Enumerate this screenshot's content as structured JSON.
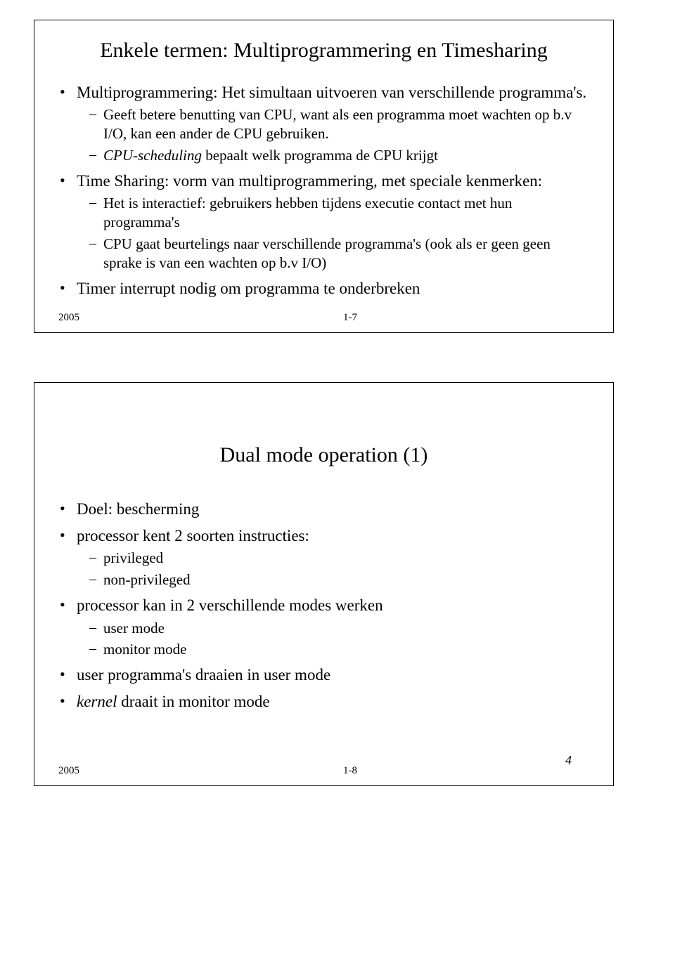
{
  "slide1": {
    "title": "Enkele termen: Multiprogrammering en Timesharing",
    "b1": "Multiprogrammering: Het simultaan uitvoeren van verschillende programma's.",
    "b1s1": "Geeft betere benutting van CPU, want als een programma moet wachten op b.v I/O, kan een ander de CPU gebruiken.",
    "b1s2_pre": "CPU-scheduling",
    "b1s2_post": " bepaalt welk programma de CPU krijgt",
    "b2": "Time Sharing: vorm van multiprogrammering, met speciale kenmerken:",
    "b2s1": "Het is interactief: gebruikers hebben tijdens executie contact met hun programma's",
    "b2s2": "CPU gaat beurtelings naar verschillende programma's (ook als er geen geen sprake is van een wachten op b.v I/O)",
    "b3": "Timer interrupt nodig om programma te onderbreken",
    "year": "2005",
    "pagenum": "1-7"
  },
  "slide2": {
    "title": "Dual mode operation (1)",
    "b1": "Doel: bescherming",
    "b2": "processor kent 2 soorten instructies:",
    "b2s1": "privileged",
    "b2s2": "non-privileged",
    "b3": "processor kan in 2 verschillende modes werken",
    "b3s1": "user mode",
    "b3s2": "monitor mode",
    "b4": "user programma's draaien in user mode",
    "b5_pre": "kernel",
    "b5_post": " draait in monitor mode",
    "year": "2005",
    "pagenum": "1-8"
  },
  "docpage": "4"
}
